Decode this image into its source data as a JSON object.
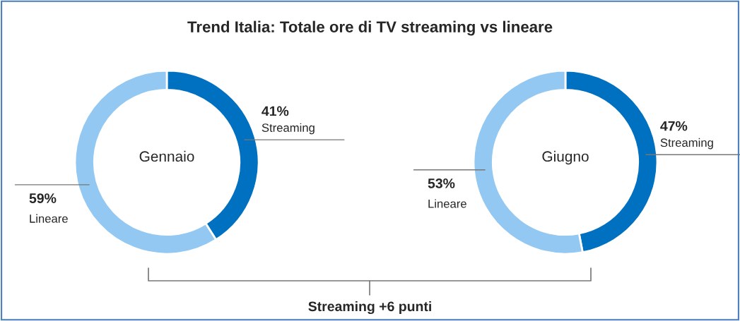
{
  "chart_data": [
    {
      "type": "donut",
      "title": "Trend Italia: Totale ore di TV streaming vs lineare",
      "subtitle": "Gennaio",
      "categories": [
        "Streaming",
        "Lineare"
      ],
      "values": [
        41,
        59
      ],
      "value_labels": [
        "41%",
        "59%"
      ],
      "colors": [
        "#0070c0",
        "#92c8f2"
      ]
    },
    {
      "type": "donut",
      "subtitle": "Giugno",
      "categories": [
        "Streaming",
        "Lineare"
      ],
      "values": [
        47,
        53
      ],
      "value_labels": [
        "47%",
        "53%"
      ],
      "colors": [
        "#0070c0",
        "#92c8f2"
      ],
      "annotations": [
        "Streaming +6 punti"
      ]
    }
  ]
}
